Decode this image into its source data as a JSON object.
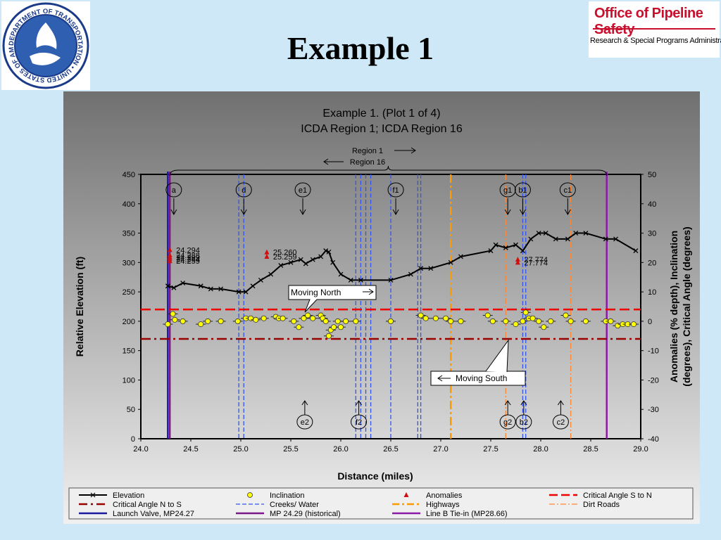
{
  "slide": {
    "title": "Example 1",
    "logo_left_text": "DEPARTMENT OF TRANSPORTATION • UNITED STATES OF AMERICA",
    "logo_right_line1": "Office of Pipeline Safety",
    "logo_right_line2": "Research & Special Programs Administration"
  },
  "colors": {
    "background": "#cfe8f8",
    "plot_bg_top": "#6f6f6f",
    "plot_bg_bottom": "#efefef",
    "elevation": "#000000",
    "inclination_fill": "#ffff00",
    "anomaly": "#d01010",
    "crit_s_to_n": "#ee0000",
    "crit_n_to_s": "#990000",
    "creeks": "#3355ee",
    "highways": "#ff9900",
    "dirt_roads": "#ff8833",
    "launch_valve": "#1a1aa0",
    "mp_historical": "#7a1a8a",
    "line_b": "#8a1aa8"
  },
  "chart_data": {
    "type": "line",
    "title": "Example 1. (Plot 1 of 4)",
    "subtitle": "ICDA Region 1; ICDA Region 16",
    "xlabel": "Distance (miles)",
    "ylabel": "Relative Elevation (ft)",
    "y2label_line1": "Anomalies (% depth), Inclination",
    "y2label_line2": "(degrees), Critical Angle (degrees)",
    "xlim": [
      24.0,
      29.0
    ],
    "ylim": [
      0,
      450
    ],
    "y2lim": [
      -40,
      50
    ],
    "x_ticks": [
      "24.0",
      "24.5",
      "25.0",
      "25.5",
      "26.0",
      "26.5",
      "27.0",
      "27.5",
      "28.0",
      "28.5",
      "29.0"
    ],
    "y_ticks": [
      "0",
      "50",
      "100",
      "150",
      "200",
      "250",
      "300",
      "350",
      "400",
      "450"
    ],
    "y2_ticks": [
      "-40",
      "-30",
      "-20",
      "-10",
      "0",
      "10",
      "20",
      "30",
      "40",
      "50"
    ],
    "elevation": {
      "name": "Elevation",
      "x": [
        24.27,
        24.33,
        24.42,
        24.6,
        24.7,
        24.8,
        24.98,
        25.05,
        25.12,
        25.2,
        25.3,
        25.4,
        25.5,
        25.6,
        25.65,
        25.72,
        25.8,
        25.85,
        25.88,
        25.92,
        26.0,
        26.1,
        26.2,
        26.5,
        26.7,
        26.8,
        26.9,
        27.1,
        27.2,
        27.5,
        27.55,
        27.65,
        27.75,
        27.82,
        27.9,
        27.98,
        28.05,
        28.15,
        28.27,
        28.35,
        28.45,
        28.65,
        28.75,
        28.95
      ],
      "y": [
        260,
        257,
        265,
        260,
        255,
        255,
        250,
        250,
        260,
        270,
        280,
        295,
        300,
        305,
        298,
        305,
        310,
        320,
        318,
        300,
        280,
        270,
        270,
        270,
        280,
        290,
        290,
        300,
        310,
        320,
        330,
        325,
        330,
        320,
        340,
        350,
        350,
        340,
        340,
        350,
        350,
        340,
        340,
        320
      ]
    },
    "inclination": {
      "name": "Inclination",
      "x": [
        24.27,
        24.32,
        24.34,
        24.42,
        24.6,
        24.67,
        24.8,
        24.97,
        25.05,
        25.1,
        25.15,
        25.23,
        25.35,
        25.38,
        25.42,
        25.53,
        25.58,
        25.63,
        25.67,
        25.72,
        25.8,
        25.82,
        25.85,
        25.88,
        25.9,
        25.93,
        25.97,
        26.0,
        26.05,
        26.15,
        26.5,
        26.8,
        26.85,
        26.95,
        27.1,
        27.05,
        27.2,
        27.47,
        27.52,
        27.65,
        27.75,
        27.82,
        27.85,
        27.88,
        27.92,
        27.98,
        28.03,
        28.1,
        28.25,
        28.3,
        28.45,
        28.65,
        28.7,
        28.77,
        28.82,
        28.87,
        28.93
      ],
      "y": [
        -1,
        2.5,
        0.5,
        0,
        -1,
        0,
        0,
        0,
        1,
        1,
        0.5,
        1,
        1.5,
        1,
        1,
        0,
        -2,
        1,
        2,
        1,
        2,
        1,
        0,
        -5,
        -3,
        -2,
        0,
        -2,
        0,
        0,
        0,
        2,
        1,
        1,
        0,
        1,
        0,
        2,
        0,
        0,
        -1,
        0,
        3,
        1,
        1,
        0,
        -2,
        0,
        2,
        0,
        0,
        0,
        0,
        -1.5,
        -1,
        -1,
        -1
      ]
    },
    "anomalies": {
      "name": "Anomalies",
      "points": [
        {
          "x": 24.29,
          "y": 24.294,
          "label": "24.294"
        },
        {
          "x": 24.29,
          "y": 22.5,
          "label": "24.288"
        },
        {
          "x": 24.29,
          "y": 21.8,
          "label": "24.299"
        },
        {
          "x": 24.29,
          "y": 21.2,
          "label": "24.264"
        },
        {
          "x": 24.29,
          "y": 20.5,
          "label": "24.259"
        },
        {
          "x": 25.26,
          "y": 23.5,
          "label": "25.260"
        },
        {
          "x": 25.26,
          "y": 22.0,
          "label": "25.259"
        },
        {
          "x": 27.77,
          "y": 21.0,
          "label": "27.774"
        },
        {
          "x": 27.77,
          "y": 20.0,
          "label": "27.774"
        }
      ]
    },
    "critical_angle_s_to_n": {
      "name": "Critical Angle S to N",
      "y": 4
    },
    "critical_angle_n_to_s": {
      "name": "Critical Angle N to S",
      "y": -6
    },
    "creeks_water": {
      "name": "Creeks/ Water",
      "x": [
        24.98,
        25.03,
        26.15,
        26.2,
        26.25,
        26.3,
        26.5,
        26.77,
        26.8,
        27.82,
        27.85
      ]
    },
    "highways": {
      "name": "Highways",
      "x": [
        27.1
      ]
    },
    "dirt_roads": {
      "name": "Dirt Roads",
      "x": [
        27.65,
        28.3
      ]
    },
    "launch_valve": {
      "name": "Launch Valve, MP24.27",
      "x": 24.27
    },
    "mp_historical": {
      "name": "MP 24.29 (historical)",
      "x": 24.29
    },
    "line_b": {
      "name": "Line B Tie-in (MP28.66)",
      "x": 28.66
    },
    "markers_north": [
      {
        "label": "a",
        "x": 24.33
      },
      {
        "label": "d",
        "x": 25.03
      },
      {
        "label": "e1",
        "x": 25.62
      },
      {
        "label": "f1",
        "x": 26.55
      },
      {
        "label": "g1",
        "x": 27.67
      },
      {
        "label": "b1",
        "x": 27.82
      },
      {
        "label": "c1",
        "x": 28.27
      }
    ],
    "markers_south": [
      {
        "label": "e2",
        "x": 25.64
      },
      {
        "label": "f2",
        "x": 26.18
      },
      {
        "label": "g2",
        "x": 27.67
      },
      {
        "label": "b2",
        "x": 27.83
      },
      {
        "label": "c2",
        "x": 28.2
      }
    ],
    "regions": {
      "region1": "Region 1",
      "region16": "Region 16"
    },
    "callouts": {
      "north": "Moving North",
      "south": "Moving South"
    },
    "legend": [
      {
        "label": "Elevation",
        "type": "elev"
      },
      {
        "label": "Inclination",
        "type": "incl"
      },
      {
        "label": "Anomalies",
        "type": "anom"
      },
      {
        "label": "Critical Angle S to N",
        "type": "crit_sn"
      },
      {
        "label": "Critical Angle N to S",
        "type": "crit_ns"
      },
      {
        "label": "Creeks/ Water",
        "type": "creek"
      },
      {
        "label": "Highways",
        "type": "hwy"
      },
      {
        "label": "Dirt Roads",
        "type": "dirt"
      },
      {
        "label": "Launch Valve, MP24.27",
        "type": "launch"
      },
      {
        "label": "MP 24.29 (historical)",
        "type": "mp"
      },
      {
        "label": "Line B Tie-in (MP28.66)",
        "type": "lineb"
      }
    ]
  }
}
